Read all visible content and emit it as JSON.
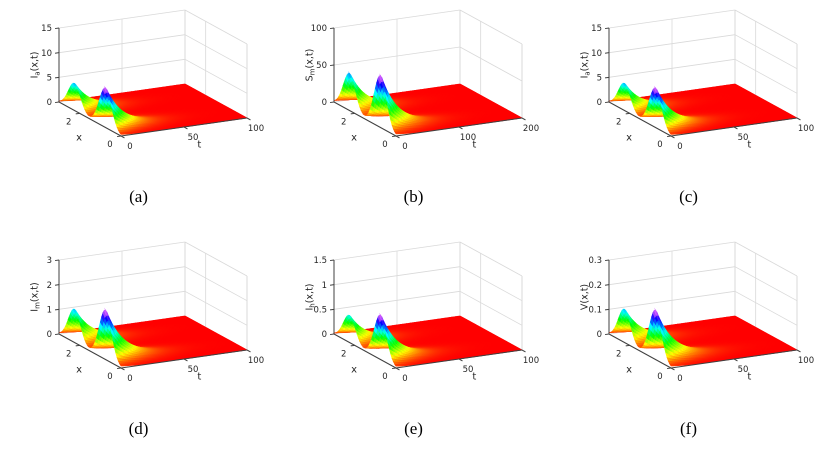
{
  "page": {
    "background": "#ffffff"
  },
  "chart_data": {
    "type": "surface",
    "layout": {
      "rows": 2,
      "cols": 3
    },
    "colormap": {
      "name": "hsv",
      "low": "#ff0000",
      "high": "#ff00ff",
      "note": "red at z=0 rising through orange, yellow, green, cyan, blue to magenta/pink at peaks; far field flat red at z=0"
    },
    "panels": [
      {
        "caption": "(a)",
        "xlabel": "x",
        "tlabel": "t",
        "zlabel": {
          "base": "I",
          "sub": "a",
          "suffix": "(x,t)"
        },
        "x_range": [
          0,
          3
        ],
        "x_ticks": [
          0,
          2
        ],
        "t_range": [
          0,
          100
        ],
        "t_ticks": [
          0,
          50,
          100
        ],
        "z_range": [
          0,
          15
        ],
        "z_ticks": [
          0,
          5,
          10,
          15
        ],
        "surface": {
          "peaks": [
            {
              "x": 0.75,
              "height": 8
            },
            {
              "x": 2.25,
              "height": 5.5
            }
          ],
          "sigma_x": 0.42,
          "t_decay": 13
        }
      },
      {
        "caption": "(b)",
        "xlabel": "x",
        "tlabel": "t",
        "zlabel": {
          "base": "S",
          "sub": "m",
          "suffix": "(x,t)"
        },
        "x_range": [
          0,
          3
        ],
        "x_ticks": [
          0,
          2
        ],
        "t_range": [
          0,
          200
        ],
        "t_ticks": [
          0,
          100,
          200
        ],
        "z_range": [
          0,
          100
        ],
        "z_ticks": [
          0,
          50,
          100
        ],
        "surface": {
          "peaks": [
            {
              "x": 0.75,
              "height": 70
            },
            {
              "x": 2.25,
              "height": 50
            }
          ],
          "sigma_x": 0.42,
          "t_decay": 26
        }
      },
      {
        "caption": "(c)",
        "xlabel": "x",
        "tlabel": "t",
        "zlabel": {
          "base": "I",
          "sub": "a",
          "suffix": "(x,t)"
        },
        "x_range": [
          0,
          3
        ],
        "x_ticks": [
          0,
          2
        ],
        "t_range": [
          0,
          100
        ],
        "t_ticks": [
          0,
          50,
          100
        ],
        "z_range": [
          0,
          15
        ],
        "z_ticks": [
          0,
          5,
          10,
          15
        ],
        "surface": {
          "peaks": [
            {
              "x": 0.75,
              "height": 8
            },
            {
              "x": 2.25,
              "height": 5.5
            }
          ],
          "sigma_x": 0.42,
          "t_decay": 13
        }
      },
      {
        "caption": "(d)",
        "xlabel": "x",
        "tlabel": "t",
        "zlabel": {
          "base": "I",
          "sub": "m",
          "suffix": "(x,t)"
        },
        "x_range": [
          0,
          3
        ],
        "x_ticks": [
          0,
          2
        ],
        "t_range": [
          0,
          100
        ],
        "t_ticks": [
          0,
          1,
          2,
          3
        ],
        "t_ticks_fix": [
          0,
          50,
          100
        ],
        "z_range": [
          0,
          3
        ],
        "z_ticks": [
          0,
          1,
          2,
          3
        ],
        "surface": {
          "peaks": [
            {
              "x": 0.75,
              "height": 2.0
            },
            {
              "x": 2.25,
              "height": 1.35
            }
          ],
          "sigma_x": 0.42,
          "t_decay": 14
        }
      },
      {
        "caption": "(e)",
        "xlabel": "x",
        "tlabel": "t",
        "zlabel": {
          "base": "I",
          "sub": "h",
          "suffix": "(x,t)"
        },
        "x_range": [
          0,
          3
        ],
        "x_ticks": [
          0,
          2
        ],
        "t_range": [
          0,
          100
        ],
        "t_ticks": [
          0,
          50,
          100
        ],
        "z_range": [
          0,
          1.5
        ],
        "z_ticks": [
          0,
          0.5,
          1,
          1.5
        ],
        "surface": {
          "peaks": [
            {
              "x": 0.75,
              "height": 0.9
            },
            {
              "x": 2.25,
              "height": 0.55
            }
          ],
          "sigma_x": 0.42,
          "t_decay": 13
        }
      },
      {
        "caption": "(f)",
        "xlabel": "x",
        "tlabel": "t",
        "zlabel": {
          "base": "V",
          "sub": "",
          "suffix": "(x,t)"
        },
        "x_range": [
          0,
          3
        ],
        "x_ticks": [
          0,
          2
        ],
        "t_range": [
          0,
          100
        ],
        "t_ticks": [
          0,
          50,
          100
        ],
        "z_range": [
          0,
          0.3
        ],
        "z_ticks": [
          0,
          0.1,
          0.2,
          0.3
        ],
        "surface": {
          "peaks": [
            {
              "x": 0.75,
              "height": 0.2
            },
            {
              "x": 2.25,
              "height": 0.135
            }
          ],
          "sigma_x": 0.42,
          "t_decay": 14
        }
      }
    ]
  }
}
